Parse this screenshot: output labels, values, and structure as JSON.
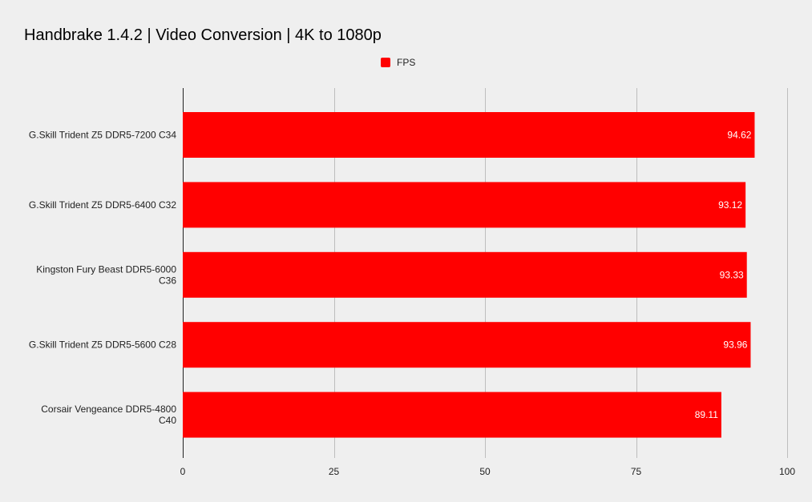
{
  "chart_data": {
    "type": "bar",
    "orientation": "horizontal",
    "title": "Handbrake 1.4.2 | Video Conversion | 4K to 1080p",
    "categories": [
      [
        "G.Skill Trident Z5 DDR5-7200 C34"
      ],
      [
        "G.Skill Trident Z5 DDR5-6400 C32"
      ],
      [
        "Kingston Fury Beast DDR5-6000",
        "C36"
      ],
      [
        "G.Skill Trident Z5 DDR5-5600 C28"
      ],
      [
        "Corsair Vengeance DDR5-4800",
        "C40"
      ]
    ],
    "series": [
      {
        "name": "FPS",
        "color": "#ff0000",
        "values": [
          94.62,
          93.12,
          93.33,
          93.96,
          89.11
        ],
        "labels": [
          "94.62",
          "93.12",
          "93.33",
          "93.96",
          "89.11"
        ]
      }
    ],
    "xlim": [
      0,
      100
    ],
    "xticks": [
      "0",
      "25",
      "50",
      "75",
      "100"
    ],
    "xtick_values": [
      0,
      25,
      50,
      75,
      100
    ],
    "grid": true,
    "legend_position": "top-center"
  }
}
